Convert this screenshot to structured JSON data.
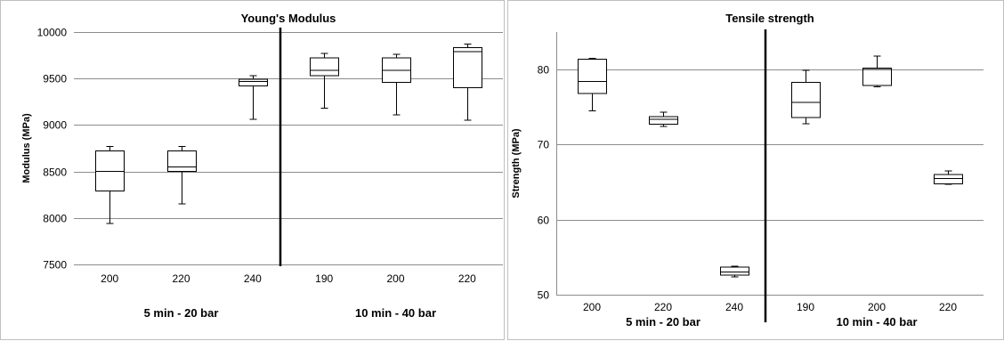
{
  "chart_data": [
    {
      "type": "boxplot",
      "title": "Young's Modulus",
      "ylabel": "Modulus (MPa)",
      "xlabel": "",
      "ylim": [
        7500,
        10000
      ],
      "yticks": [
        7500,
        8000,
        8500,
        9000,
        9500,
        10000
      ],
      "grid": true,
      "categories": [
        "200",
        "220",
        "240",
        "190",
        "200",
        "220"
      ],
      "groups": [
        {
          "label": "5 min - 20 bar",
          "categories": [
            0,
            1,
            2
          ]
        },
        {
          "label": "10 min - 40 bar",
          "categories": [
            3,
            4,
            5
          ]
        }
      ],
      "divider_after_category": 2,
      "boxes": [
        {
          "min": 7940,
          "q1": 8290,
          "median": 8500,
          "q3": 8720,
          "max": 8770
        },
        {
          "min": 8150,
          "q1": 8500,
          "median": 8550,
          "q3": 8720,
          "max": 8770
        },
        {
          "min": 9060,
          "q1": 9420,
          "median": 9470,
          "q3": 9490,
          "max": 9530
        },
        {
          "min": 9180,
          "q1": 9530,
          "median": 9590,
          "q3": 9720,
          "max": 9770
        },
        {
          "min": 9110,
          "q1": 9460,
          "median": 9590,
          "q3": 9720,
          "max": 9760
        },
        {
          "min": 9050,
          "q1": 9400,
          "median": 9790,
          "q3": 9830,
          "max": 9870
        }
      ]
    },
    {
      "type": "boxplot",
      "title": "Tensile strength",
      "ylabel": "Strength (MPa)",
      "xlabel": "",
      "ylim": [
        50,
        85
      ],
      "yticks": [
        50,
        60,
        70,
        80
      ],
      "grid": true,
      "categories": [
        "200",
        "220",
        "240",
        "190",
        "200",
        "220"
      ],
      "groups": [
        {
          "label": "5 min - 20 bar",
          "categories": [
            0,
            1,
            2
          ]
        },
        {
          "label": "10 min - 40 bar",
          "categories": [
            3,
            4,
            5
          ]
        }
      ],
      "divider_after_category": 2,
      "boxes": [
        {
          "min": 74.5,
          "q1": 76.8,
          "median": 78.4,
          "q3": 81.4,
          "max": 81.5
        },
        {
          "min": 72.4,
          "q1": 72.7,
          "median": 73.4,
          "q3": 73.7,
          "max": 74.3
        },
        {
          "min": 52.4,
          "q1": 52.6,
          "median": 53.0,
          "q3": 53.7,
          "max": 53.8
        },
        {
          "min": 72.8,
          "q1": 73.6,
          "median": 75.6,
          "q3": 78.3,
          "max": 79.9
        },
        {
          "min": 77.7,
          "q1": 77.9,
          "median": 80.0,
          "q3": 80.2,
          "max": 81.8
        },
        {
          "min": 64.7,
          "q1": 64.8,
          "median": 65.5,
          "q3": 66.0,
          "max": 66.5
        }
      ]
    }
  ]
}
